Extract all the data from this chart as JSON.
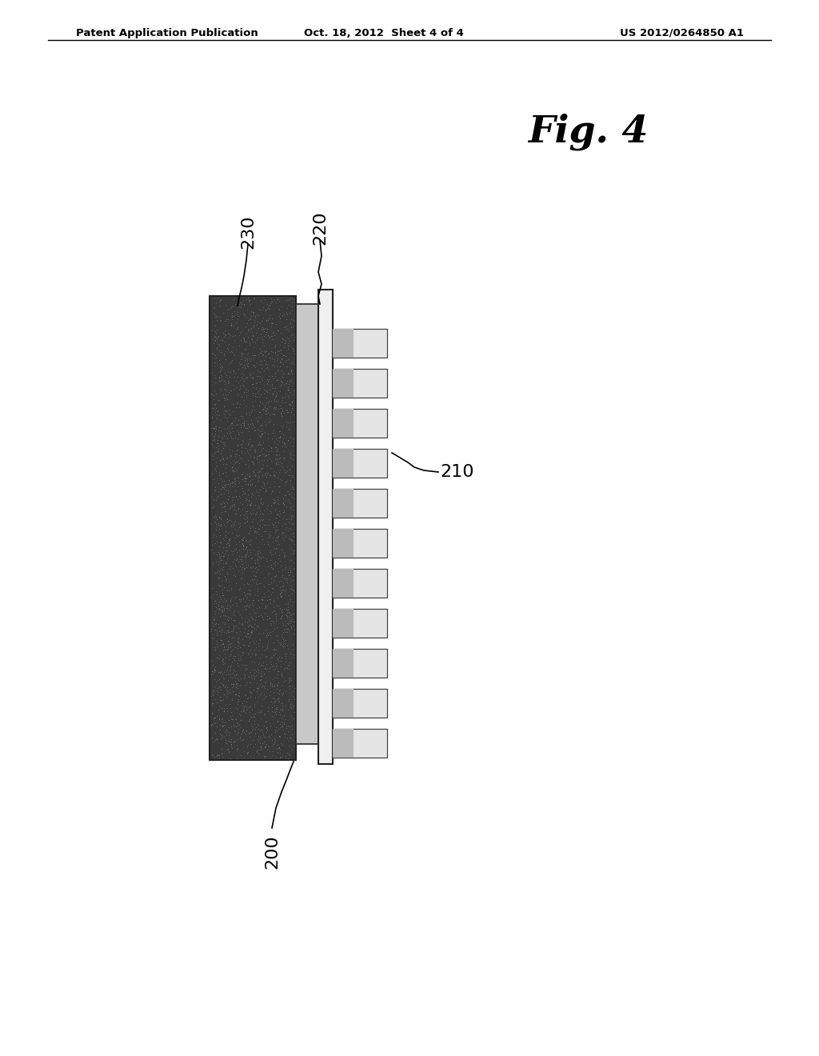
{
  "background_color": "#ffffff",
  "header_left": "Patent Application Publication",
  "header_center": "Oct. 18, 2012  Sheet 4 of 4",
  "header_right": "US 2012/0264850 A1",
  "fig_label": "Fig. 4",
  "label_200": "200",
  "label_210": "210",
  "label_220": "220",
  "label_230": "230",
  "dark_block_color": "#3a3a3a",
  "light_layer_color": "#c8c8c8",
  "white_layer_color": "#f0f0f0",
  "tooth_color": "#e5e5e5",
  "tooth_dark_color": "#bbbbbb",
  "layer_border": "#222222",
  "tooth_border": "#444444"
}
